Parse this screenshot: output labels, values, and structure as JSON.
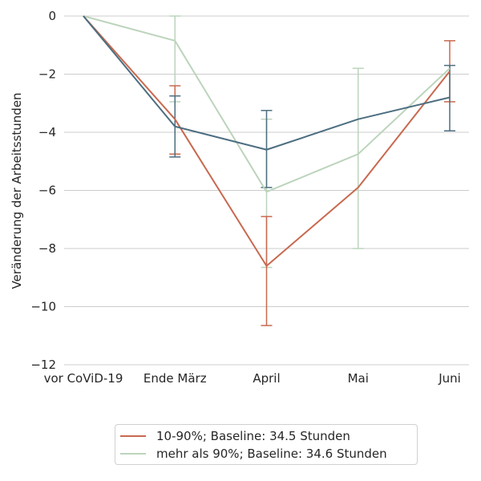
{
  "chart_data": {
    "type": "line",
    "categories": [
      "vor CoViD-19",
      "Ende März",
      "April",
      "Mai",
      "Juni"
    ],
    "ylabel": "Veränderung der Arbeitsstunden",
    "xlabel": "",
    "ylim": [
      -12,
      0
    ],
    "yticks": [
      0,
      -2,
      -4,
      -6,
      -8,
      -10,
      -12
    ],
    "ytick_labels": [
      "0",
      "−2",
      "−4",
      "−6",
      "−8",
      "−10",
      "−12"
    ],
    "grid": "horizontal",
    "legend_position": "bottom-center",
    "series": [
      {
        "name": "10-90%; Baseline: 34.5 Stunden",
        "color": "#c8694f",
        "values": [
          0,
          -3.55,
          -8.6,
          -5.9,
          -1.9
        ],
        "err_low": [
          null,
          -4.75,
          -10.65,
          null,
          -2.95
        ],
        "err_high": [
          null,
          -2.4,
          -6.9,
          null,
          -0.85
        ]
      },
      {
        "name": "mehr als 90%; Baseline: 34.6 Stunden",
        "color": "#bcd4bc",
        "values": [
          0,
          -0.85,
          -6.05,
          -4.75,
          -1.8
        ],
        "err_low": [
          null,
          -2.95,
          -8.65,
          -8.0,
          null
        ],
        "err_high": [
          null,
          0,
          -3.55,
          -1.8,
          null
        ]
      },
      {
        "color": "#4d6e80",
        "values": [
          0,
          -3.8,
          -4.6,
          -3.55,
          -2.8
        ],
        "err_low": [
          null,
          -4.85,
          -5.9,
          null,
          -3.95
        ],
        "err_high": [
          null,
          -2.75,
          -3.25,
          null,
          -1.7
        ]
      }
    ]
  }
}
